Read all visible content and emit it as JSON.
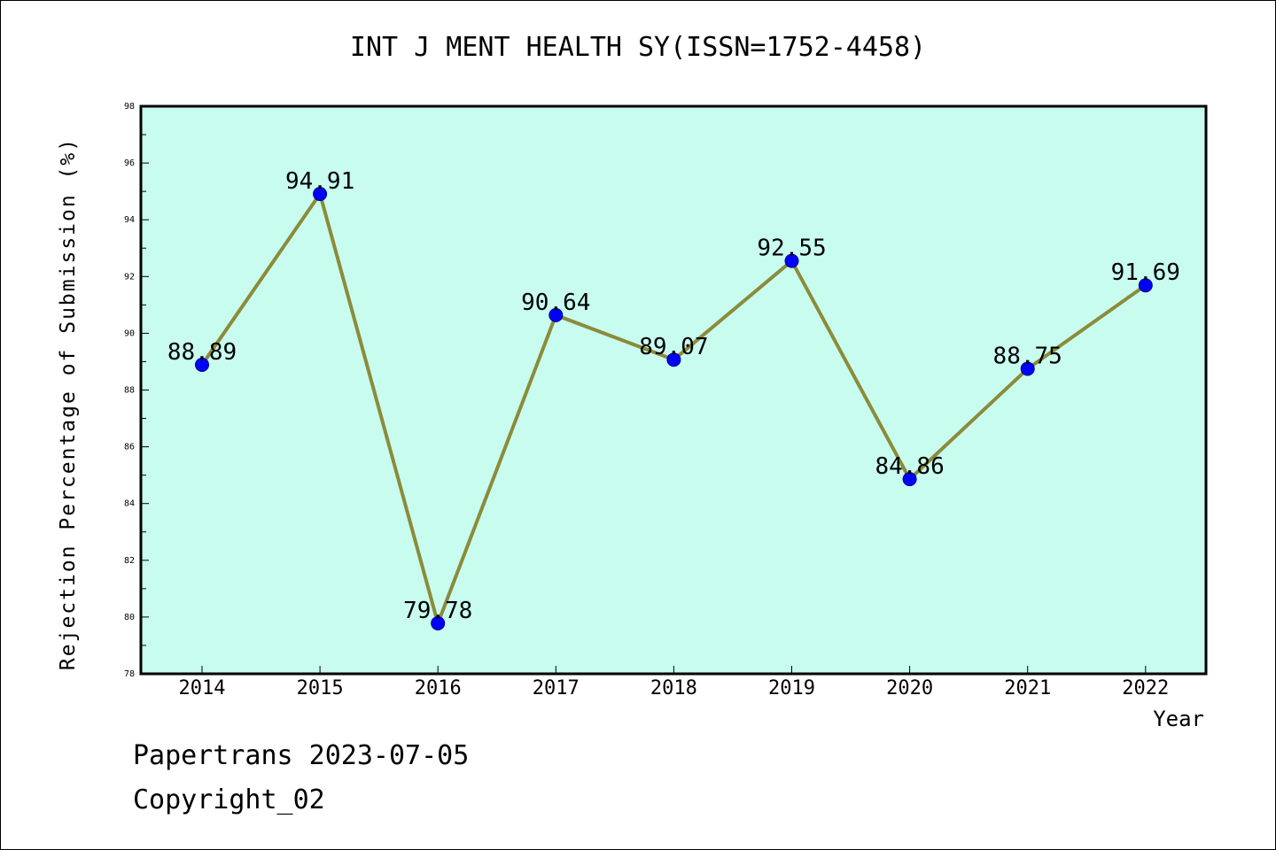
{
  "chart_data": {
    "type": "line",
    "title": "INT J MENT HEALTH SY(ISSN=1752-4458)",
    "xlabel": "Year",
    "ylabel": "Rejection Percentage of Submission (%)",
    "categories": [
      "2014",
      "2015",
      "2016",
      "2017",
      "2018",
      "2019",
      "2020",
      "2021",
      "2022"
    ],
    "series": [
      {
        "values": [
          88.89,
          94.91,
          79.78,
          90.64,
          89.07,
          92.55,
          84.86,
          88.75,
          91.69
        ]
      }
    ],
    "data_labels": [
      "88.89",
      "94.91",
      "79.78",
      "90.64",
      "89.07",
      "92.55",
      "84.86",
      "88.75",
      "91.69"
    ],
    "ylim": [
      78,
      98
    ],
    "yticks": [
      "78",
      "80",
      "82",
      "84",
      "86",
      "88",
      "90",
      "92",
      "94",
      "96",
      "98"
    ],
    "grid": false,
    "colors": {
      "plot_background": "#c8fcee",
      "line": "#8b8b3a",
      "marker": "#0000ff"
    }
  },
  "footer": {
    "line1": "Papertrans 2023-07-05",
    "line2": "Copyright_02"
  }
}
